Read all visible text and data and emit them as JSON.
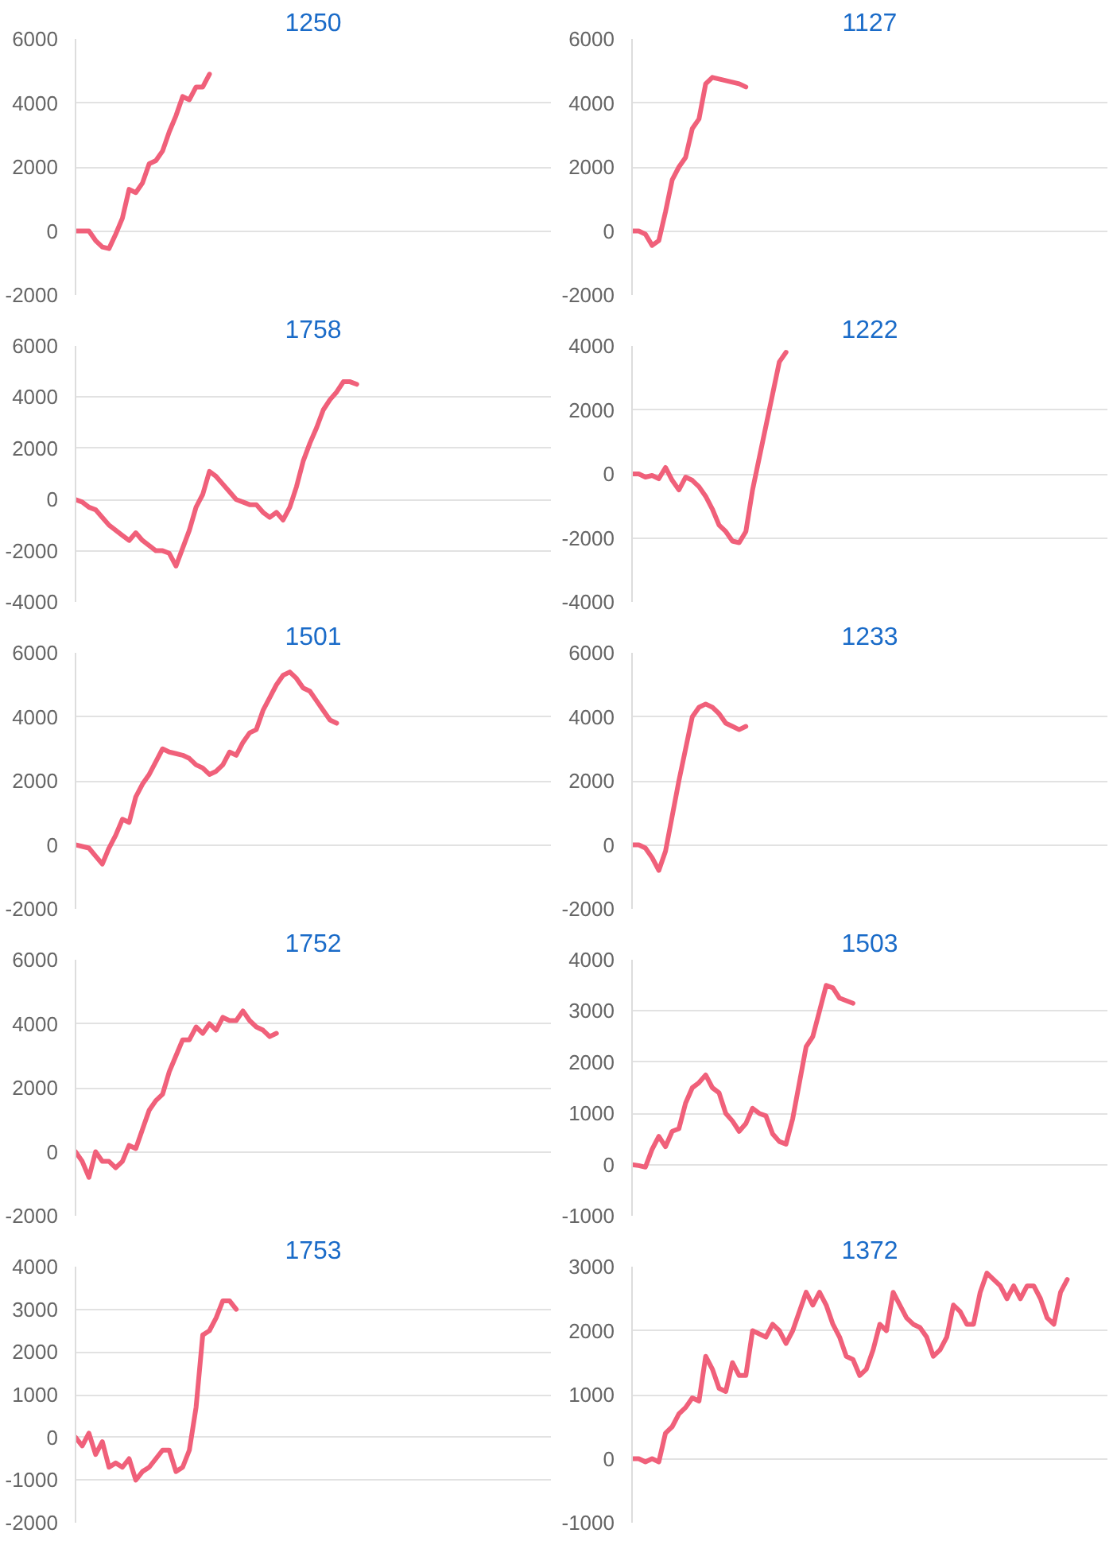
{
  "chart_data": [
    {
      "type": "line",
      "title": "1250",
      "categories": [
        null,
        null,
        null,
        null,
        null,
        null,
        null,
        null,
        null,
        null,
        null,
        null,
        null,
        null,
        null,
        null,
        null,
        null,
        null,
        null,
        null,
        null,
        null,
        null,
        null,
        null,
        null,
        null,
        null,
        null,
        null,
        null,
        null,
        null,
        null,
        null,
        null,
        null,
        null,
        null,
        null,
        null,
        null,
        null,
        null,
        null,
        null,
        null,
        null,
        null,
        null,
        null,
        null,
        null,
        null,
        null,
        null,
        null,
        null,
        null,
        null,
        null,
        null,
        null,
        null,
        null,
        null,
        null,
        null,
        null,
        null,
        null
      ],
      "series": [
        {
          "color": "#f0607a",
          "values": [
            0,
            0,
            0,
            -300,
            -500,
            -550,
            -100,
            400,
            1300,
            1200,
            1500,
            2100,
            2200,
            2500,
            3100,
            3600,
            4200,
            4100,
            4500,
            4500,
            4900,
            null,
            null,
            null,
            null,
            null,
            null,
            null,
            null,
            null,
            null,
            null,
            null,
            null,
            null,
            null,
            null,
            null,
            null,
            null,
            null,
            null,
            null,
            null,
            null,
            null,
            null,
            null,
            null,
            null,
            null,
            null,
            null,
            null,
            null,
            null,
            null,
            null,
            null,
            null,
            null,
            null,
            null,
            null,
            null,
            null,
            null,
            null,
            null,
            null,
            null,
            null
          ]
        }
      ],
      "ylim": [
        -2000,
        6000
      ],
      "yticks": [
        -2000,
        0,
        2000,
        4000,
        6000
      ],
      "grid": "y",
      "tick_labels": "y"
    },
    {
      "type": "line",
      "title": "1127",
      "categories": [
        null,
        null,
        null,
        null,
        null,
        null,
        null,
        null,
        null,
        null,
        null,
        null,
        null,
        null,
        null,
        null,
        null,
        null,
        null,
        null,
        null,
        null,
        null,
        null,
        null,
        null,
        null,
        null,
        null,
        null,
        null,
        null,
        null,
        null,
        null,
        null,
        null,
        null,
        null,
        null,
        null,
        null,
        null,
        null,
        null,
        null,
        null,
        null,
        null,
        null,
        null,
        null,
        null,
        null,
        null,
        null,
        null,
        null,
        null,
        null,
        null,
        null,
        null,
        null,
        null,
        null,
        null,
        null,
        null,
        null,
        null,
        null
      ],
      "series": [
        {
          "color": "#f0607a",
          "values": [
            0,
            0,
            -100,
            -450,
            -300,
            600,
            1600,
            2000,
            2300,
            3200,
            3500,
            4600,
            4800,
            4750,
            4700,
            4650,
            4600,
            4500,
            null,
            null,
            null,
            null,
            null,
            null,
            null,
            null,
            null,
            null,
            null,
            null,
            null,
            null,
            null,
            null,
            null,
            null,
            null,
            null,
            null,
            null,
            null,
            null,
            null,
            null,
            null,
            null,
            null,
            null,
            null,
            null,
            null,
            null,
            null,
            null,
            null,
            null,
            null,
            null,
            null,
            null,
            null,
            null,
            null,
            null,
            null,
            null,
            null,
            null,
            null,
            null,
            null,
            null
          ]
        }
      ],
      "ylim": [
        -2000,
        6000
      ],
      "yticks": [
        -2000,
        0,
        2000,
        4000,
        6000
      ],
      "grid": "y",
      "tick_labels": "y"
    },
    {
      "type": "line",
      "title": "1758",
      "categories": [
        null,
        null,
        null,
        null,
        null,
        null,
        null,
        null,
        null,
        null,
        null,
        null,
        null,
        null,
        null,
        null,
        null,
        null,
        null,
        null,
        null,
        null,
        null,
        null,
        null,
        null,
        null,
        null,
        null,
        null,
        null,
        null,
        null,
        null,
        null,
        null,
        null,
        null,
        null,
        null,
        null,
        null,
        null,
        null,
        null,
        null,
        null,
        null,
        null,
        null,
        null,
        null,
        null,
        null,
        null,
        null,
        null,
        null,
        null,
        null,
        null,
        null,
        null,
        null,
        null,
        null,
        null,
        null,
        null,
        null,
        null,
        null
      ],
      "series": [
        {
          "color": "#f0607a",
          "values": [
            0,
            -100,
            -300,
            -400,
            -700,
            -1000,
            -1200,
            -1400,
            -1600,
            -1300,
            -1600,
            -1800,
            -2000,
            -2000,
            -2100,
            -2600,
            -1900,
            -1200,
            -300,
            200,
            1100,
            900,
            600,
            300,
            0,
            -100,
            -200,
            -200,
            -500,
            -700,
            -500,
            -800,
            -300,
            500,
            1500,
            2200,
            2800,
            3500,
            3900,
            4200,
            4600,
            4600,
            4500,
            null,
            null,
            null,
            null,
            null,
            null,
            null,
            null,
            null,
            null,
            null,
            null,
            null,
            null,
            null,
            null,
            null,
            null,
            null,
            null,
            null,
            null,
            null,
            null,
            null,
            null,
            null,
            null,
            null
          ]
        }
      ],
      "ylim": [
        -4000,
        6000
      ],
      "yticks": [
        -4000,
        -2000,
        0,
        2000,
        4000,
        6000
      ],
      "grid": "y",
      "tick_labels": "y"
    },
    {
      "type": "line",
      "title": "1222",
      "categories": [
        null,
        null,
        null,
        null,
        null,
        null,
        null,
        null,
        null,
        null,
        null,
        null,
        null,
        null,
        null,
        null,
        null,
        null,
        null,
        null,
        null,
        null,
        null,
        null,
        null,
        null,
        null,
        null,
        null,
        null,
        null,
        null,
        null,
        null,
        null,
        null,
        null,
        null,
        null,
        null,
        null,
        null,
        null,
        null,
        null,
        null,
        null,
        null,
        null,
        null,
        null,
        null,
        null,
        null,
        null,
        null,
        null,
        null,
        null,
        null,
        null,
        null,
        null,
        null,
        null,
        null,
        null,
        null,
        null,
        null,
        null,
        null
      ],
      "series": [
        {
          "color": "#f0607a",
          "values": [
            0,
            0,
            -100,
            -50,
            -150,
            200,
            -200,
            -500,
            -100,
            -200,
            -400,
            -700,
            -1100,
            -1600,
            -1800,
            -2100,
            -2150,
            -1800,
            -500,
            500,
            1500,
            2500,
            3500,
            3800,
            null,
            null,
            null,
            null,
            null,
            null,
            null,
            null,
            null,
            null,
            null,
            null,
            null,
            null,
            null,
            null,
            null,
            null,
            null,
            null,
            null,
            null,
            null,
            null,
            null,
            null,
            null,
            null,
            null,
            null,
            null,
            null,
            null,
            null,
            null,
            null,
            null,
            null,
            null,
            null,
            null,
            null,
            null,
            null,
            null,
            null,
            null,
            null
          ]
        }
      ],
      "ylim": [
        -4000,
        4000
      ],
      "yticks": [
        -4000,
        -2000,
        0,
        2000,
        4000
      ],
      "grid": "y",
      "tick_labels": "y"
    },
    {
      "type": "line",
      "title": "1501",
      "categories": [
        null,
        null,
        null,
        null,
        null,
        null,
        null,
        null,
        null,
        null,
        null,
        null,
        null,
        null,
        null,
        null,
        null,
        null,
        null,
        null,
        null,
        null,
        null,
        null,
        null,
        null,
        null,
        null,
        null,
        null,
        null,
        null,
        null,
        null,
        null,
        null,
        null,
        null,
        null,
        null,
        null,
        null,
        null,
        null,
        null,
        null,
        null,
        null,
        null,
        null,
        null,
        null,
        null,
        null,
        null,
        null,
        null,
        null,
        null,
        null,
        null,
        null,
        null,
        null,
        null,
        null,
        null,
        null,
        null,
        null,
        null,
        null
      ],
      "series": [
        {
          "color": "#f0607a",
          "values": [
            0,
            -50,
            -100,
            -350,
            -600,
            -100,
            300,
            800,
            700,
            1500,
            1900,
            2200,
            2600,
            3000,
            2900,
            2850,
            2800,
            2700,
            2500,
            2400,
            2200,
            2300,
            2500,
            2900,
            2800,
            3200,
            3500,
            3600,
            4200,
            4600,
            5000,
            5300,
            5400,
            5200,
            4900,
            4800,
            4500,
            4200,
            3900,
            3800,
            null,
            null,
            null,
            null,
            null,
            null,
            null,
            null,
            null,
            null,
            null,
            null,
            null,
            null,
            null,
            null,
            null,
            null,
            null,
            null,
            null,
            null,
            null,
            null,
            null,
            null,
            null,
            null,
            null,
            null,
            null,
            null
          ]
        }
      ],
      "ylim": [
        -2000,
        6000
      ],
      "yticks": [
        -2000,
        0,
        2000,
        4000,
        6000
      ],
      "grid": "y",
      "tick_labels": "y"
    },
    {
      "type": "line",
      "title": "1233",
      "categories": [
        null,
        null,
        null,
        null,
        null,
        null,
        null,
        null,
        null,
        null,
        null,
        null,
        null,
        null,
        null,
        null,
        null,
        null,
        null,
        null,
        null,
        null,
        null,
        null,
        null,
        null,
        null,
        null,
        null,
        null,
        null,
        null,
        null,
        null,
        null,
        null,
        null,
        null,
        null,
        null,
        null,
        null,
        null,
        null,
        null,
        null,
        null,
        null,
        null,
        null,
        null,
        null,
        null,
        null,
        null,
        null,
        null,
        null,
        null,
        null,
        null,
        null,
        null,
        null,
        null,
        null,
        null,
        null,
        null,
        null,
        null,
        null
      ],
      "series": [
        {
          "color": "#f0607a",
          "values": [
            0,
            0,
            -100,
            -400,
            -800,
            -200,
            900,
            2000,
            3000,
            4000,
            4300,
            4400,
            4300,
            4100,
            3800,
            3700,
            3600,
            3700,
            null,
            null,
            null,
            null,
            null,
            null,
            null,
            null,
            null,
            null,
            null,
            null,
            null,
            null,
            null,
            null,
            null,
            null,
            null,
            null,
            null,
            null,
            null,
            null,
            null,
            null,
            null,
            null,
            null,
            null,
            null,
            null,
            null,
            null,
            null,
            null,
            null,
            null,
            null,
            null,
            null,
            null,
            null,
            null,
            null,
            null,
            null,
            null,
            null,
            null,
            null,
            null,
            null,
            null
          ]
        }
      ],
      "ylim": [
        -2000,
        6000
      ],
      "yticks": [
        -2000,
        0,
        2000,
        4000,
        6000
      ],
      "grid": "y",
      "tick_labels": "y"
    },
    {
      "type": "line",
      "title": "1752",
      "categories": [
        null,
        null,
        null,
        null,
        null,
        null,
        null,
        null,
        null,
        null,
        null,
        null,
        null,
        null,
        null,
        null,
        null,
        null,
        null,
        null,
        null,
        null,
        null,
        null,
        null,
        null,
        null,
        null,
        null,
        null,
        null,
        null,
        null,
        null,
        null,
        null,
        null,
        null,
        null,
        null,
        null,
        null,
        null,
        null,
        null,
        null,
        null,
        null,
        null,
        null,
        null,
        null,
        null,
        null,
        null,
        null,
        null,
        null,
        null,
        null,
        null,
        null,
        null,
        null,
        null,
        null,
        null,
        null,
        null,
        null,
        null,
        null
      ],
      "series": [
        {
          "color": "#f0607a",
          "values": [
            0,
            -300,
            -800,
            0,
            -300,
            -300,
            -500,
            -300,
            200,
            100,
            700,
            1300,
            1600,
            1800,
            2500,
            3000,
            3500,
            3500,
            3900,
            3700,
            4000,
            3800,
            4200,
            4100,
            4100,
            4400,
            4100,
            3900,
            3800,
            3600,
            3700,
            null,
            null,
            null,
            null,
            null,
            null,
            null,
            null,
            null,
            null,
            null,
            null,
            null,
            null,
            null,
            null,
            null,
            null,
            null,
            null,
            null,
            null,
            null,
            null,
            null,
            null,
            null,
            null,
            null,
            null,
            null,
            null,
            null,
            null,
            null,
            null,
            null,
            null,
            null,
            null,
            null
          ]
        }
      ],
      "ylim": [
        -2000,
        6000
      ],
      "yticks": [
        -2000,
        0,
        2000,
        4000,
        6000
      ],
      "grid": "y",
      "tick_labels": "y"
    },
    {
      "type": "line",
      "title": "1503",
      "categories": [
        null,
        null,
        null,
        null,
        null,
        null,
        null,
        null,
        null,
        null,
        null,
        null,
        null,
        null,
        null,
        null,
        null,
        null,
        null,
        null,
        null,
        null,
        null,
        null,
        null,
        null,
        null,
        null,
        null,
        null,
        null,
        null,
        null,
        null,
        null,
        null,
        null,
        null,
        null,
        null,
        null,
        null,
        null,
        null,
        null,
        null,
        null,
        null,
        null,
        null,
        null,
        null,
        null,
        null,
        null,
        null,
        null,
        null,
        null,
        null,
        null,
        null,
        null,
        null,
        null,
        null,
        null,
        null,
        null,
        null,
        null,
        null
      ],
      "series": [
        {
          "color": "#f0607a",
          "values": [
            0,
            -20,
            -50,
            300,
            550,
            350,
            650,
            700,
            1200,
            1500,
            1600,
            1750,
            1500,
            1400,
            1000,
            850,
            650,
            800,
            1100,
            1000,
            950,
            600,
            450,
            400,
            900,
            1600,
            2300,
            2500,
            3000,
            3500,
            3450,
            3250,
            3200,
            3150,
            null,
            null,
            null,
            null,
            null,
            null,
            null,
            null,
            null,
            null,
            null,
            null,
            null,
            null,
            null,
            null,
            null,
            null,
            null,
            null,
            null,
            null,
            null,
            null,
            null,
            null,
            null,
            null,
            null,
            null,
            null,
            null,
            null,
            null,
            null,
            null,
            null,
            null
          ]
        }
      ],
      "ylim": [
        -1000,
        4000
      ],
      "yticks": [
        -1000,
        0,
        1000,
        2000,
        3000,
        4000
      ],
      "grid": "y",
      "tick_labels": "y"
    },
    {
      "type": "line",
      "title": "1753",
      "categories": [
        null,
        null,
        null,
        null,
        null,
        null,
        null,
        null,
        null,
        null,
        null,
        null,
        null,
        null,
        null,
        null,
        null,
        null,
        null,
        null,
        null,
        null,
        null,
        null,
        null,
        null,
        null,
        null,
        null,
        null,
        null,
        null,
        null,
        null,
        null,
        null,
        null,
        null,
        null,
        null,
        null,
        null,
        null,
        null,
        null,
        null,
        null,
        null,
        null,
        null,
        null,
        null,
        null,
        null,
        null,
        null,
        null,
        null,
        null,
        null,
        null,
        null,
        null,
        null,
        null,
        null,
        null,
        null,
        null,
        null,
        null,
        null
      ],
      "series": [
        {
          "color": "#f0607a",
          "values": [
            0,
            -200,
            100,
            -400,
            -100,
            -700,
            -600,
            -700,
            -500,
            -1000,
            -800,
            -700,
            -500,
            -300,
            -300,
            -800,
            -700,
            -300,
            700,
            2400,
            2500,
            2800,
            3200,
            3200,
            3000,
            null,
            null,
            null,
            null,
            null,
            null,
            null,
            null,
            null,
            null,
            null,
            null,
            null,
            null,
            null,
            null,
            null,
            null,
            null,
            null,
            null,
            null,
            null,
            null,
            null,
            null,
            null,
            null,
            null,
            null,
            null,
            null,
            null,
            null,
            null,
            null,
            null,
            null,
            null,
            null,
            null,
            null,
            null,
            null,
            null,
            null,
            null
          ]
        }
      ],
      "ylim": [
        -2000,
        4000
      ],
      "yticks": [
        -2000,
        -1000,
        0,
        1000,
        2000,
        3000,
        4000
      ],
      "grid": "y",
      "tick_labels": "y"
    },
    {
      "type": "line",
      "title": "1372",
      "categories": [
        null,
        null,
        null,
        null,
        null,
        null,
        null,
        null,
        null,
        null,
        null,
        null,
        null,
        null,
        null,
        null,
        null,
        null,
        null,
        null,
        null,
        null,
        null,
        null,
        null,
        null,
        null,
        null,
        null,
        null,
        null,
        null,
        null,
        null,
        null,
        null,
        null,
        null,
        null,
        null,
        null,
        null,
        null,
        null,
        null,
        null,
        null,
        null,
        null,
        null,
        null,
        null,
        null,
        null,
        null,
        null,
        null,
        null,
        null,
        null,
        null,
        null,
        null,
        null,
        null,
        null,
        null,
        null,
        null,
        null,
        null,
        null
      ],
      "series": [
        {
          "color": "#f0607a",
          "values": [
            0,
            0,
            -50,
            0,
            -50,
            400,
            500,
            700,
            800,
            950,
            900,
            1600,
            1400,
            1100,
            1050,
            1500,
            1300,
            1300,
            2000,
            1950,
            1900,
            2100,
            2000,
            1800,
            2000,
            2300,
            2600,
            2400,
            2600,
            2400,
            2100,
            1900,
            1600,
            1550,
            1300,
            1400,
            1700,
            2100,
            2000,
            2600,
            2400,
            2200,
            2100,
            2050,
            1900,
            1600,
            1700,
            1900,
            2400,
            2300,
            2100,
            2100,
            2600,
            2900,
            2800,
            2700,
            2500,
            2700,
            2500,
            2700,
            2700,
            2500,
            2200,
            2100,
            2600,
            2800,
            null,
            null,
            null,
            null,
            null,
            null
          ]
        }
      ],
      "ylim": [
        -1000,
        3000
      ],
      "yticks": [
        -1000,
        0,
        1000,
        2000,
        3000
      ],
      "grid": "y",
      "tick_labels": "y"
    }
  ]
}
